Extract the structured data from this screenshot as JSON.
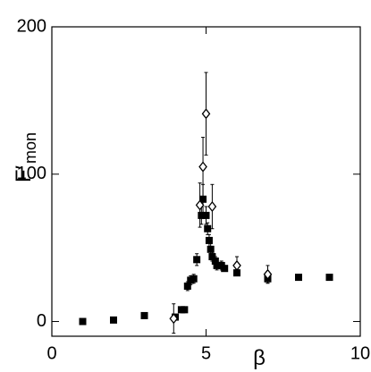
{
  "chart_data": {
    "type": "scatter",
    "xlabel": "β",
    "ylabel": "F′",
    "ylabel_subscript": "mon",
    "xlim": [
      0,
      10
    ],
    "ylim": [
      -10,
      200
    ],
    "xticks": [
      0,
      5,
      10
    ],
    "yticks": [
      0,
      100,
      200
    ],
    "series": [
      {
        "marker": "square",
        "color": "#000000",
        "x": [
          1,
          2,
          3,
          4,
          4.2,
          4.3,
          4.4,
          4.5,
          4.6,
          4.7,
          4.85,
          4.9,
          5.0,
          5.05,
          5.1,
          5.15,
          5.2,
          5.3,
          5.35,
          5.5,
          5.6,
          6,
          7,
          8,
          9
        ],
        "values": [
          0,
          1,
          4,
          3,
          8,
          8,
          24,
          28,
          29,
          42,
          72,
          83,
          72,
          63,
          55,
          49,
          44,
          41,
          38,
          38,
          36,
          33,
          29,
          30,
          30
        ],
        "errors": [
          1,
          1,
          1,
          1,
          2,
          2,
          3,
          3,
          3,
          4,
          6,
          10,
          6,
          4,
          4,
          4,
          3,
          3,
          3,
          3,
          2,
          2,
          3,
          1,
          1
        ]
      },
      {
        "marker": "diamond",
        "color": "#000000",
        "x": [
          3.95,
          4.8,
          4.9,
          5.0,
          5.2,
          6,
          7
        ],
        "values": [
          2,
          79,
          105,
          141,
          78,
          38,
          32
        ],
        "errors": [
          10,
          15,
          20,
          28,
          15,
          6,
          6
        ]
      }
    ]
  }
}
